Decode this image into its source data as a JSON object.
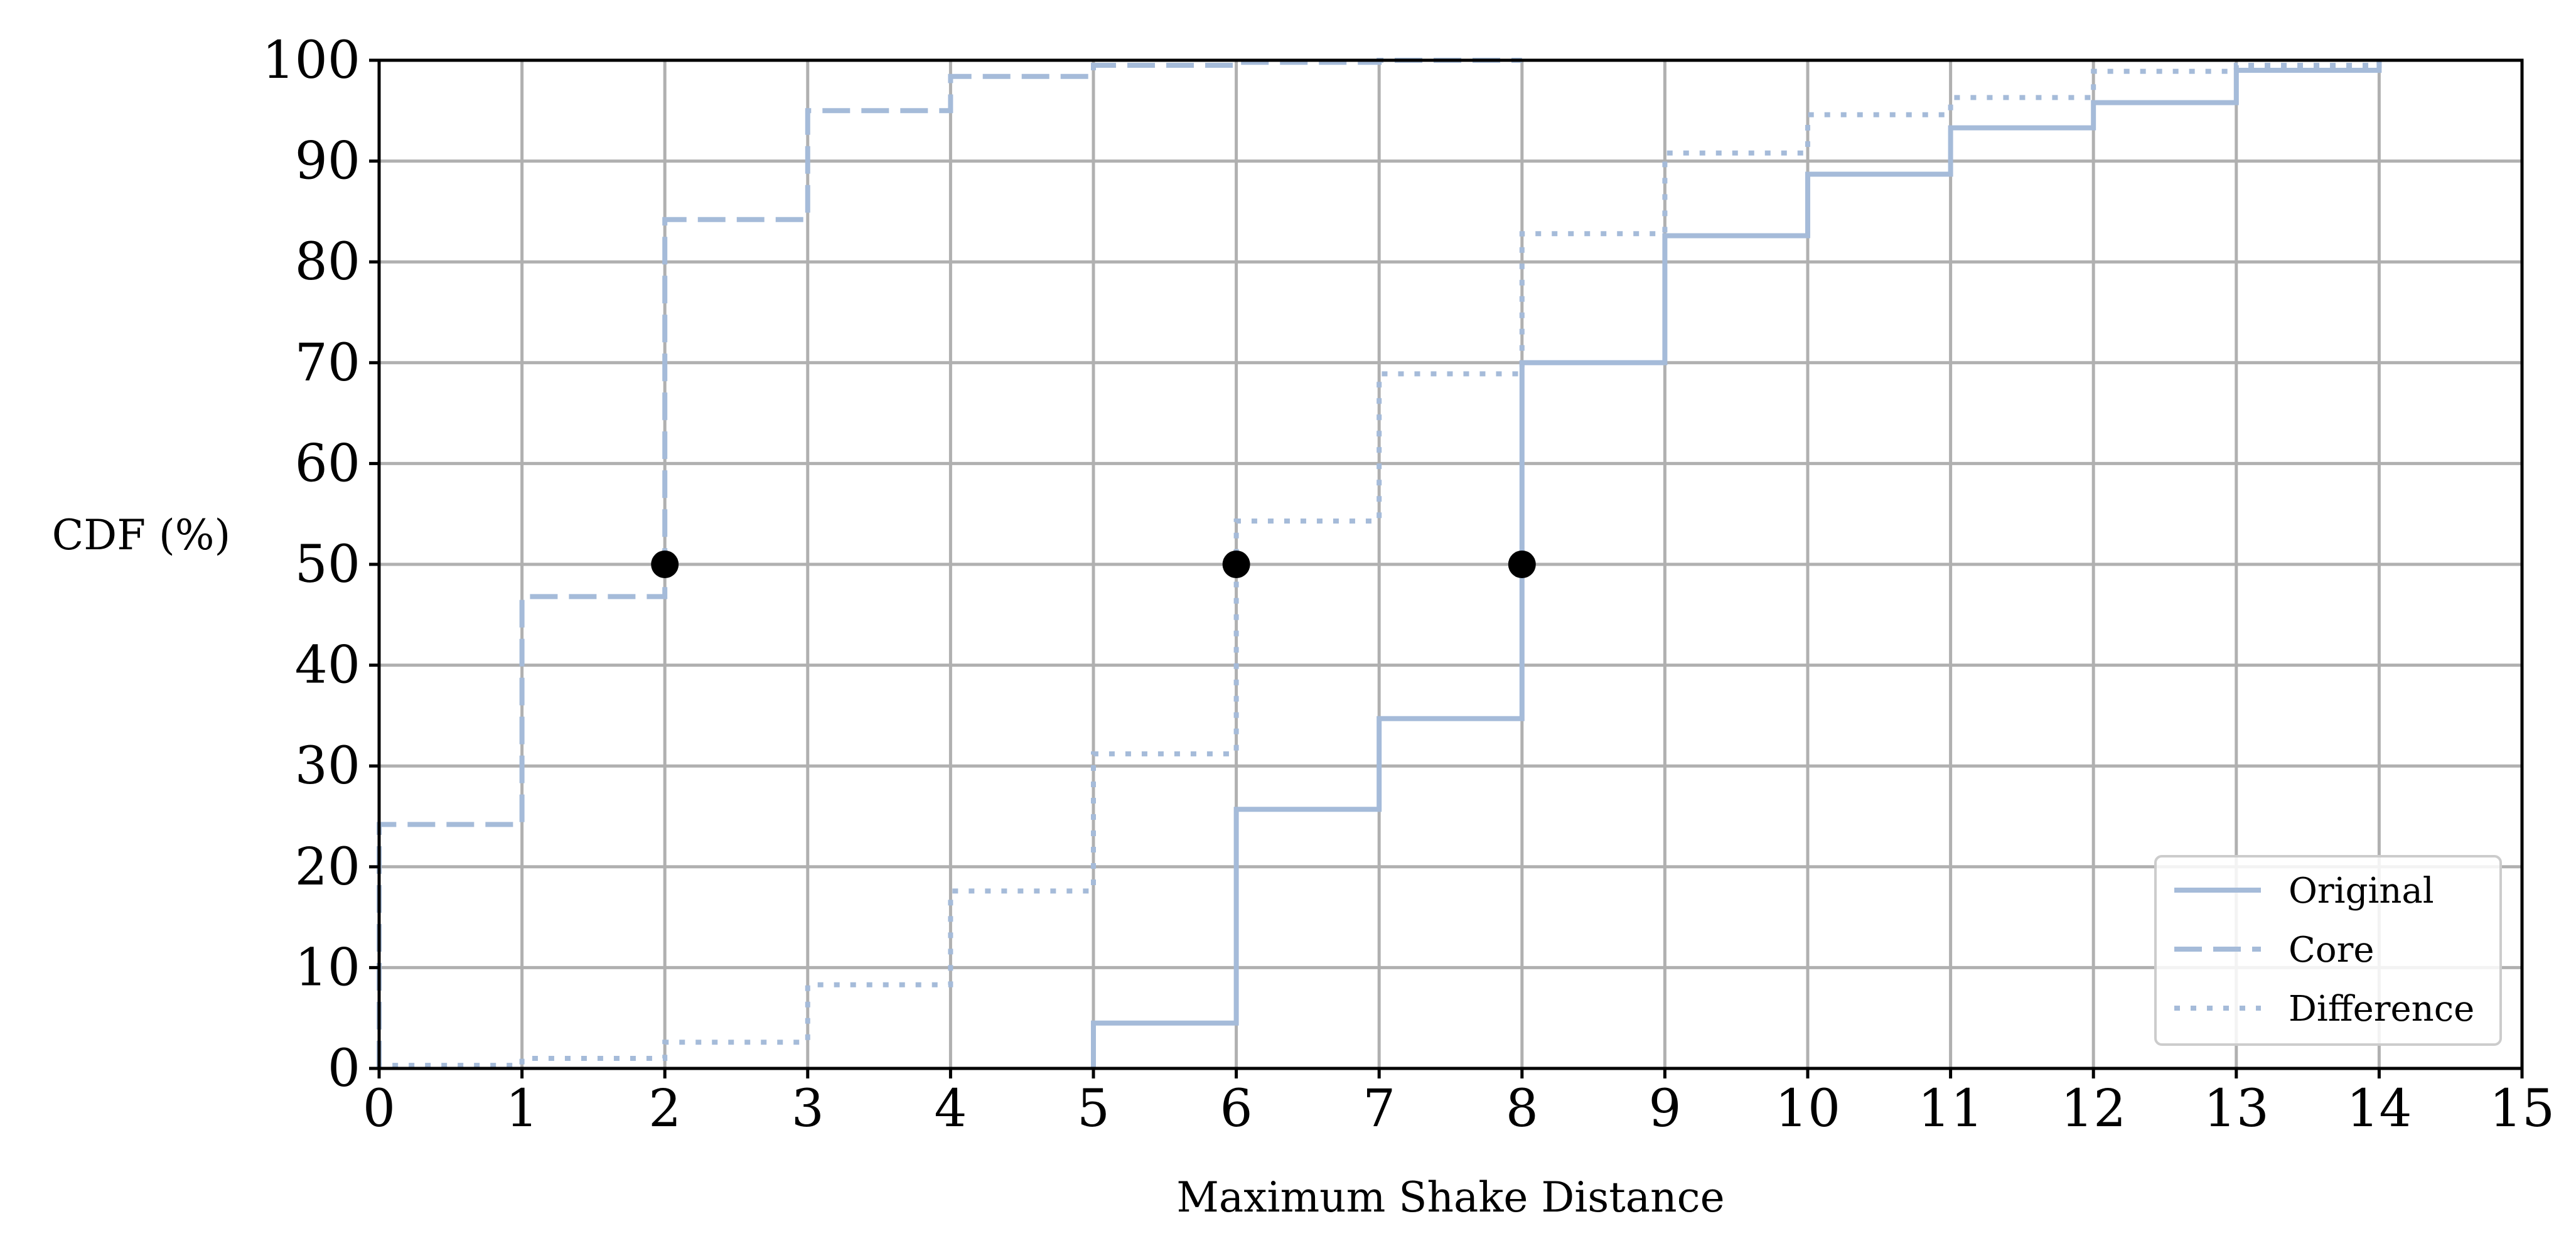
{
  "chart_data": {
    "type": "line",
    "step": "post",
    "xlabel": "Maximum Shake Distance",
    "ylabel": "CDF (%)",
    "xlim": [
      0,
      15
    ],
    "ylim": [
      0,
      100
    ],
    "xticks": [
      "0",
      "1",
      "2",
      "3",
      "4",
      "5",
      "6",
      "7",
      "8",
      "9",
      "10",
      "11",
      "12",
      "13",
      "14",
      "15"
    ],
    "yticks": [
      "0",
      "10",
      "20",
      "30",
      "40",
      "50",
      "60",
      "70",
      "80",
      "90",
      "100"
    ],
    "grid": true,
    "legend_position": "bottom-right",
    "color": "#a5bbd9",
    "series": [
      {
        "name": "Original",
        "style": "solid",
        "x": [
          5,
          6,
          7,
          8,
          9,
          10,
          11,
          12,
          13,
          14
        ],
        "y": [
          4.5,
          25.7,
          34.7,
          70.0,
          82.6,
          88.7,
          93.3,
          95.8,
          99.0,
          100
        ]
      },
      {
        "name": "Core",
        "style": "dashed",
        "x": [
          0,
          1,
          2,
          3,
          4,
          5,
          6,
          7,
          8
        ],
        "y": [
          24.2,
          46.8,
          84.2,
          95.0,
          98.4,
          99.5,
          99.8,
          100,
          100
        ]
      },
      {
        "name": "Difference",
        "style": "dotted",
        "x": [
          0,
          1,
          2,
          3,
          4,
          5,
          6,
          7,
          8,
          9,
          10,
          11,
          12,
          13,
          14
        ],
        "y": [
          0.3,
          1.0,
          2.6,
          8.3,
          17.6,
          31.2,
          54.3,
          68.9,
          82.8,
          90.8,
          94.6,
          96.3,
          98.9,
          99.5,
          100
        ]
      }
    ],
    "markers": [
      {
        "x": 2,
        "y": 50
      },
      {
        "x": 6,
        "y": 50
      },
      {
        "x": 8,
        "y": 50
      }
    ]
  }
}
